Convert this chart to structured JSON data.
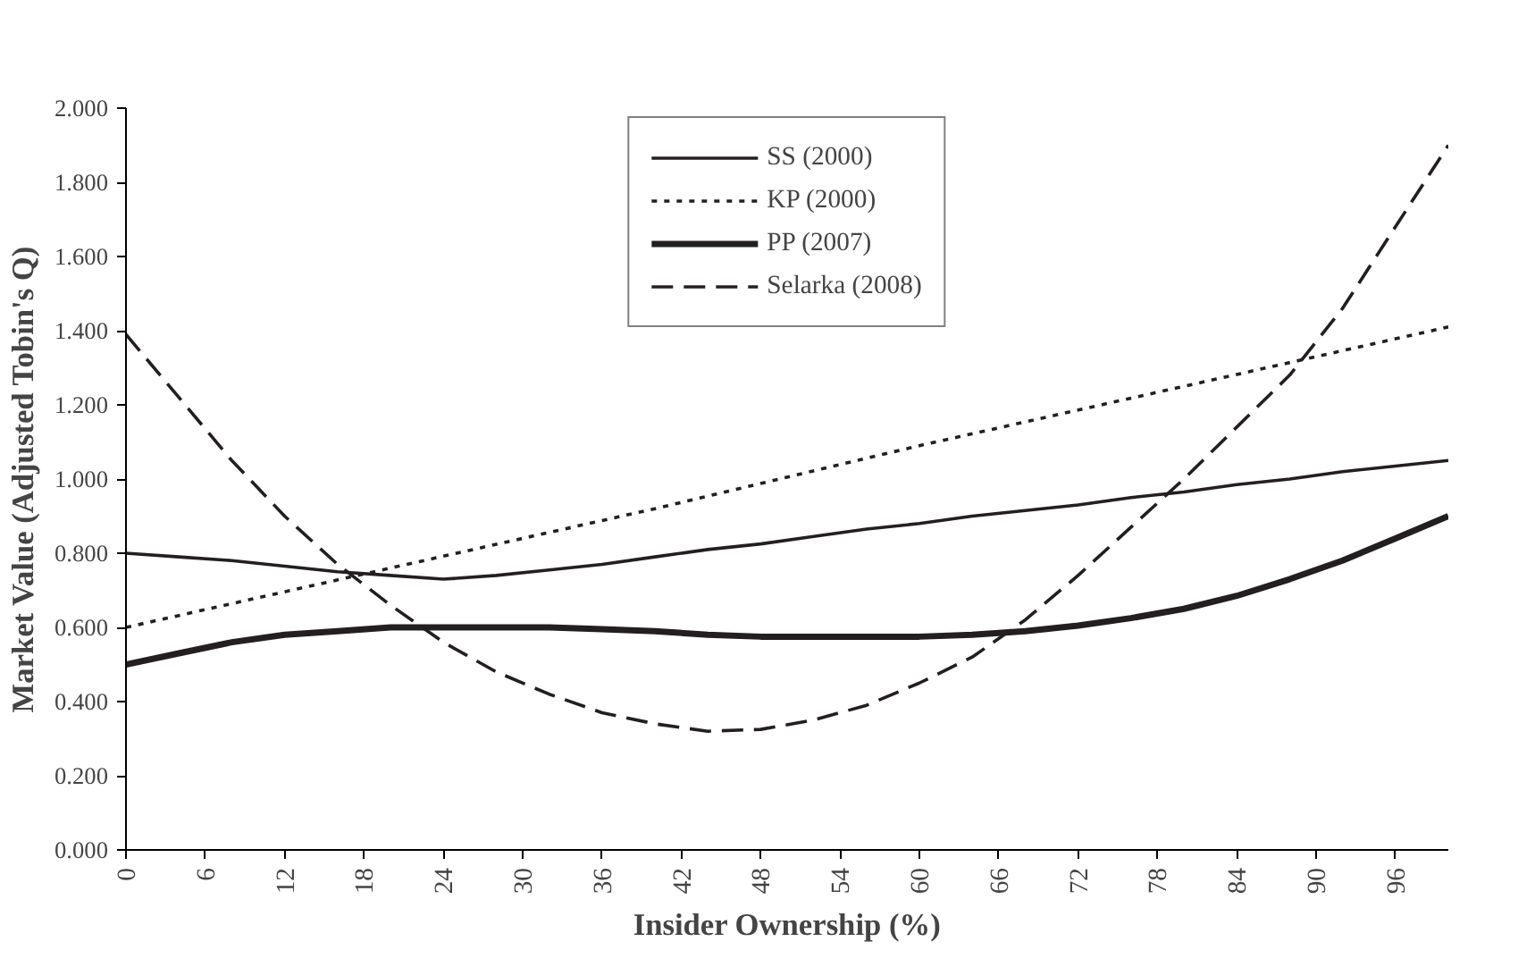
{
  "chart_data": {
    "type": "line",
    "xlabel": "Insider Ownership (%)",
    "ylabel": "Market Value (Adjusted Tobin's Q)",
    "xlim": [
      0,
      100
    ],
    "xticks": [
      0,
      6,
      12,
      18,
      24,
      30,
      36,
      42,
      48,
      54,
      60,
      66,
      72,
      78,
      84,
      90,
      96
    ],
    "ylim": [
      0,
      2
    ],
    "yticks": [
      {
        "value": 0,
        "label": "0.000"
      },
      {
        "value": 0.2,
        "label": "0.200"
      },
      {
        "value": 0.4,
        "label": "0.400"
      },
      {
        "value": 0.6,
        "label": "0.600"
      },
      {
        "value": 0.8,
        "label": "0.800"
      },
      {
        "value": 1.0,
        "label": "1.000"
      },
      {
        "value": 1.2,
        "label": "1.200"
      },
      {
        "value": 1.4,
        "label": "1.400"
      },
      {
        "value": 1.6,
        "label": "1.600"
      },
      {
        "value": 1.8,
        "label": "1.800"
      },
      {
        "value": 2.0,
        "label": "2.000"
      }
    ],
    "grid": false,
    "legend": "top",
    "marker": "none",
    "x": [
      0,
      4,
      8,
      12,
      16,
      20,
      24,
      28,
      32,
      36,
      40,
      44,
      48,
      52,
      56,
      60,
      64,
      68,
      72,
      76,
      80,
      84,
      88,
      92,
      96,
      100
    ],
    "series": [
      {
        "name": "SS (2000)",
        "color": "#231f20",
        "line_style": "solid",
        "values": [
          0.8,
          0.79,
          0.78,
          0.765,
          0.75,
          0.74,
          0.73,
          0.74,
          0.755,
          0.77,
          0.79,
          0.81,
          0.825,
          0.845,
          0.865,
          0.88,
          0.9,
          0.915,
          0.93,
          0.95,
          0.965,
          0.985,
          1.0,
          1.02,
          1.035,
          1.05
        ]
      },
      {
        "name": "KP (2000)",
        "color": "#231f20",
        "line_style": "dotted",
        "x": [
          0,
          20,
          40,
          60,
          80,
          100
        ],
        "values": [
          0.6,
          0.76,
          0.92,
          1.09,
          1.25,
          1.41
        ]
      },
      {
        "name": "PP (2007)",
        "color": "#231f20",
        "line_style": "solid",
        "values": [
          0.5,
          0.53,
          0.56,
          0.58,
          0.59,
          0.6,
          0.6,
          0.6,
          0.6,
          0.595,
          0.59,
          0.58,
          0.575,
          0.575,
          0.575,
          0.575,
          0.58,
          0.59,
          0.605,
          0.625,
          0.65,
          0.685,
          0.73,
          0.78,
          0.84,
          0.9
        ]
      },
      {
        "name": "Selarka (2008)",
        "color": "#231f20",
        "line_style": "dashed",
        "values": [
          1.39,
          1.22,
          1.05,
          0.9,
          0.77,
          0.66,
          0.56,
          0.48,
          0.42,
          0.37,
          0.34,
          0.32,
          0.325,
          0.35,
          0.39,
          0.45,
          0.52,
          0.62,
          0.74,
          0.87,
          1.0,
          1.14,
          1.28,
          1.46,
          1.68,
          1.9
        ]
      }
    ]
  }
}
